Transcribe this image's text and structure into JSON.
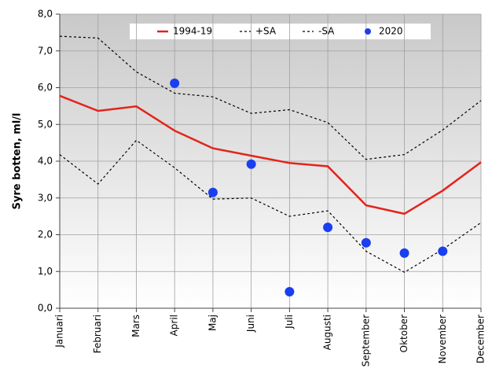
{
  "chart_data": {
    "type": "line",
    "y_label": "Syre botten, ml/l",
    "categories": [
      "Januari",
      "Februari",
      "Mars",
      "April",
      "Maj",
      "Juni",
      "Juli",
      "Augusti",
      "September",
      "Oktober",
      "November",
      "December"
    ],
    "series": [
      {
        "name": "1994-19",
        "color": "#e3241b",
        "style": "solid",
        "values": [
          5.78,
          5.37,
          5.49,
          4.83,
          4.35,
          4.15,
          3.95,
          3.86,
          2.8,
          2.57,
          3.2,
          3.97
        ]
      },
      {
        "name": "+SA",
        "color": "#000000",
        "style": "dashed",
        "values": [
          7.4,
          7.35,
          6.43,
          5.85,
          5.75,
          5.3,
          5.4,
          5.05,
          4.05,
          4.18,
          4.85,
          5.65
        ]
      },
      {
        "name": "-SA",
        "color": "#000000",
        "style": "dashed",
        "values": [
          4.18,
          3.38,
          4.57,
          3.82,
          2.97,
          3.0,
          2.5,
          2.65,
          1.55,
          0.98,
          1.6,
          2.33
        ]
      },
      {
        "name": "2020",
        "color": "#1a3ff0",
        "style": "marker",
        "values": [
          null,
          null,
          null,
          6.12,
          3.15,
          3.92,
          0.45,
          2.2,
          1.78,
          1.5,
          1.55,
          null
        ]
      }
    ],
    "ylim": [
      0,
      8
    ],
    "yticks": [
      {
        "value": 0,
        "label": "0,0"
      },
      {
        "value": 1,
        "label": "1,0"
      },
      {
        "value": 2,
        "label": "2,0"
      },
      {
        "value": 3,
        "label": "3,0"
      },
      {
        "value": 4,
        "label": "4,0"
      },
      {
        "value": 5,
        "label": "5,0"
      },
      {
        "value": 6,
        "label": "6,0"
      },
      {
        "value": 7,
        "label": "7,0"
      },
      {
        "value": 8,
        "label": "8,0"
      }
    ],
    "grid": true
  }
}
